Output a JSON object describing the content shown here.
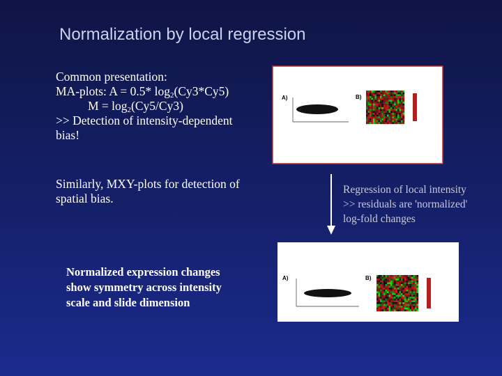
{
  "slide": {
    "title": "Normalization by local regression",
    "left_text": {
      "paragraph1": [
        [
          {
            "text": "Common presentation:"
          }
        ],
        [
          {
            "text": "MA-plots: A = 0.5* log"
          },
          {
            "sub": "2"
          },
          {
            "text": "(Cy3*Cy5)"
          }
        ],
        [
          {
            "text": "M =  log"
          },
          {
            "sub": "2"
          },
          {
            "text": "(Cy5/Cy3)"
          }
        ],
        [
          {
            "text": ">> Detection of intensity-dependent"
          }
        ],
        [
          {
            "text": "bias!"
          }
        ]
      ],
      "paragraph2": [
        [
          {
            "text": "Similarly, MXY-plots for detection of"
          }
        ],
        [
          {
            "text": "spatial bias."
          }
        ]
      ]
    },
    "right_text": [
      "Regression of local intensity",
      ">> residuals are 'normalized'",
      "log-fold changes"
    ],
    "bold_text": [
      "Normalized expression changes",
      "show symmetry across intensity",
      "scale and slide dimension"
    ],
    "figure_top": {
      "panel_a": "A)",
      "panel_b": "B)"
    },
    "figure_bottom": {
      "panel_a": "A)",
      "panel_b": "B)"
    }
  }
}
